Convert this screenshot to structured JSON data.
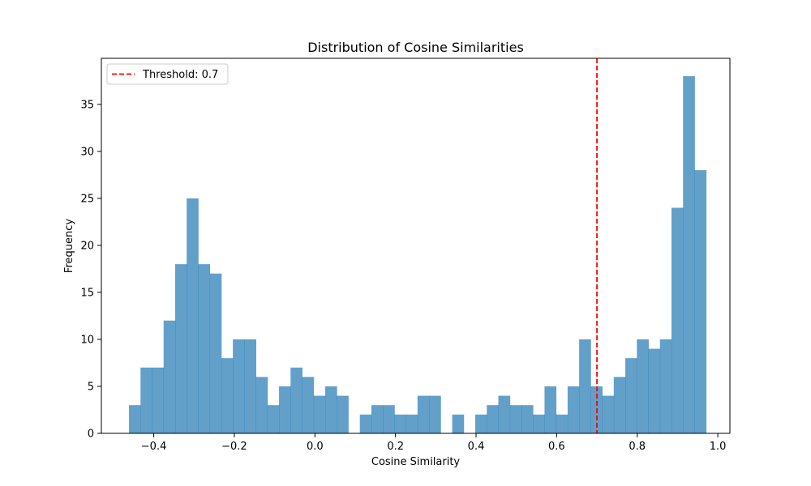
{
  "chart_data": {
    "type": "histogram",
    "title": "Distribution of Cosine Similarities",
    "xlabel": "Cosine Similarity",
    "ylabel": "Frequency",
    "xlim": [
      -0.53,
      1.03
    ],
    "ylim": [
      0,
      39.9
    ],
    "xticks": [
      -0.4,
      -0.2,
      0.0,
      0.2,
      0.4,
      0.6,
      0.8,
      1.0
    ],
    "xtick_labels": [
      "−0.4",
      "−0.2",
      "0.0",
      "0.2",
      "0.4",
      "0.6",
      "0.8",
      "1.0"
    ],
    "yticks": [
      0,
      5,
      10,
      15,
      20,
      25,
      30,
      35
    ],
    "ytick_labels": [
      "0",
      "5",
      "10",
      "15",
      "20",
      "25",
      "30",
      "35"
    ],
    "bin_start": -0.4615,
    "bin_width": 0.02865,
    "counts": [
      3,
      7,
      7,
      12,
      18,
      25,
      18,
      17,
      8,
      10,
      10,
      6,
      3,
      5,
      7,
      6,
      4,
      5,
      4,
      0,
      2,
      3,
      3,
      2,
      2,
      4,
      4,
      0,
      2,
      0,
      2,
      3,
      4,
      3,
      3,
      2,
      5,
      2,
      5,
      10,
      5,
      4,
      6,
      8,
      10,
      9,
      10,
      24,
      38,
      28
    ],
    "bar_color": "#1f77b4",
    "bar_alpha": 0.7,
    "threshold": {
      "value": 0.7,
      "label": "Threshold: 0.7",
      "color": "#ff0000",
      "linestyle": "dashed"
    },
    "legend": {
      "location": "upper left",
      "entries": [
        "Threshold: 0.7"
      ]
    },
    "grid": false
  }
}
